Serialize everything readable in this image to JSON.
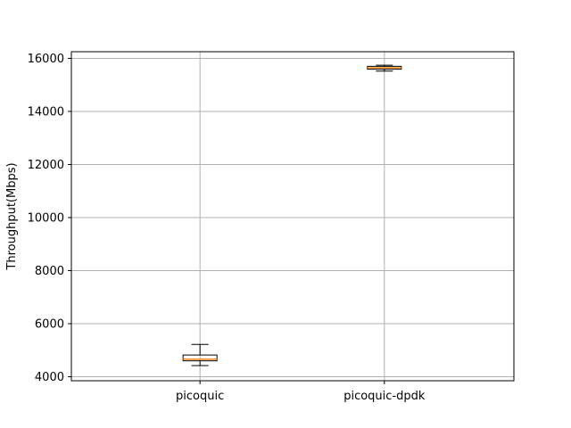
{
  "chart_data": {
    "type": "box",
    "title": "",
    "xlabel": "",
    "ylabel": "Throughput(Mbps)",
    "ylim": [
      3850,
      16250
    ],
    "yticks": [
      4000,
      6000,
      8000,
      10000,
      12000,
      14000,
      16000
    ],
    "grid": true,
    "categories": [
      "picoquic",
      "picoquic-dpdk"
    ],
    "boxes": [
      {
        "label": "picoquic",
        "whisker_low": 4420,
        "q1": 4600,
        "median": 4660,
        "q3": 4820,
        "whisker_high": 5220
      },
      {
        "label": "picoquic-dpdk",
        "whisker_low": 15520,
        "q1": 15590,
        "median": 15640,
        "q3": 15700,
        "whisker_high": 15740
      }
    ],
    "colors": {
      "median": "#ff7f0e",
      "box": "#000000",
      "grid": "#b0b0b0"
    }
  }
}
